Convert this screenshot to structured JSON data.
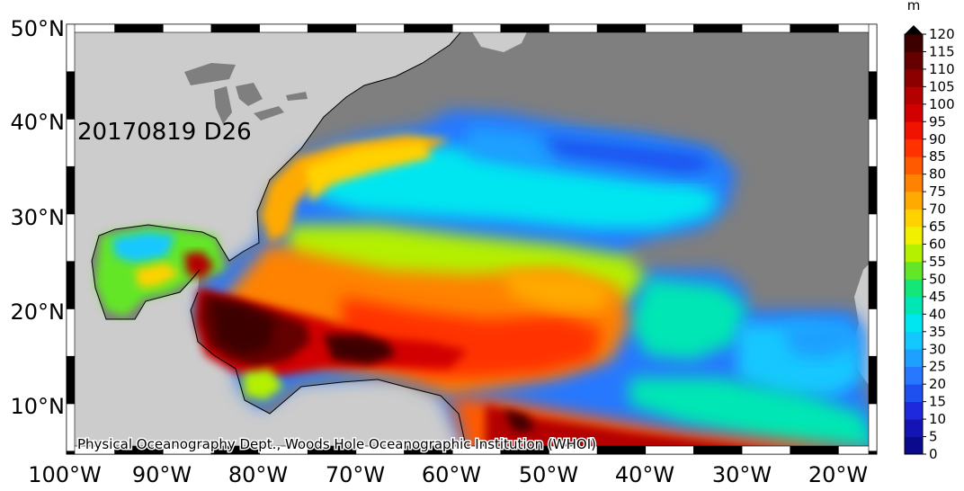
{
  "map": {
    "date_label": "20170819 D26",
    "credit": "Physical Oceanography Dept., Woods Hole Oceanographic Institution (WHOI)",
    "lat_labels": [
      "50°N",
      "40°N",
      "30°N",
      "20°N",
      "10°N"
    ],
    "lon_labels": [
      "100°W",
      "90°W",
      "80°W",
      "70°W",
      "60°W",
      "50°W",
      "40°W",
      "30°W",
      "20°W"
    ],
    "colors": {
      "land": "#cccccc",
      "no_data": "#7f7f7f",
      "frame_dark": "#000000",
      "frame_light": "#ffffff"
    }
  },
  "colorbar": {
    "unit": "m",
    "ticks": [
      "0",
      "5",
      "10",
      "15",
      "20",
      "25",
      "30",
      "35",
      "40",
      "45",
      "50",
      "55",
      "60",
      "65",
      "70",
      "75",
      "80",
      "85",
      "90",
      "95",
      "100",
      "105",
      "110",
      "115",
      "120"
    ],
    "colors": [
      "#0a0a8c",
      "#1414b4",
      "#1e28dc",
      "#1e50f0",
      "#2878ff",
      "#1ea0ff",
      "#14c8ff",
      "#00e6f0",
      "#00e6b4",
      "#14e678",
      "#64e628",
      "#b4f000",
      "#f0f000",
      "#ffd200",
      "#ffaa00",
      "#ff8200",
      "#ff5a00",
      "#ff3200",
      "#f01400",
      "#d20000",
      "#b40000",
      "#8c0000",
      "#640000",
      "#3c0000"
    ],
    "max_arrow": "#000000"
  }
}
